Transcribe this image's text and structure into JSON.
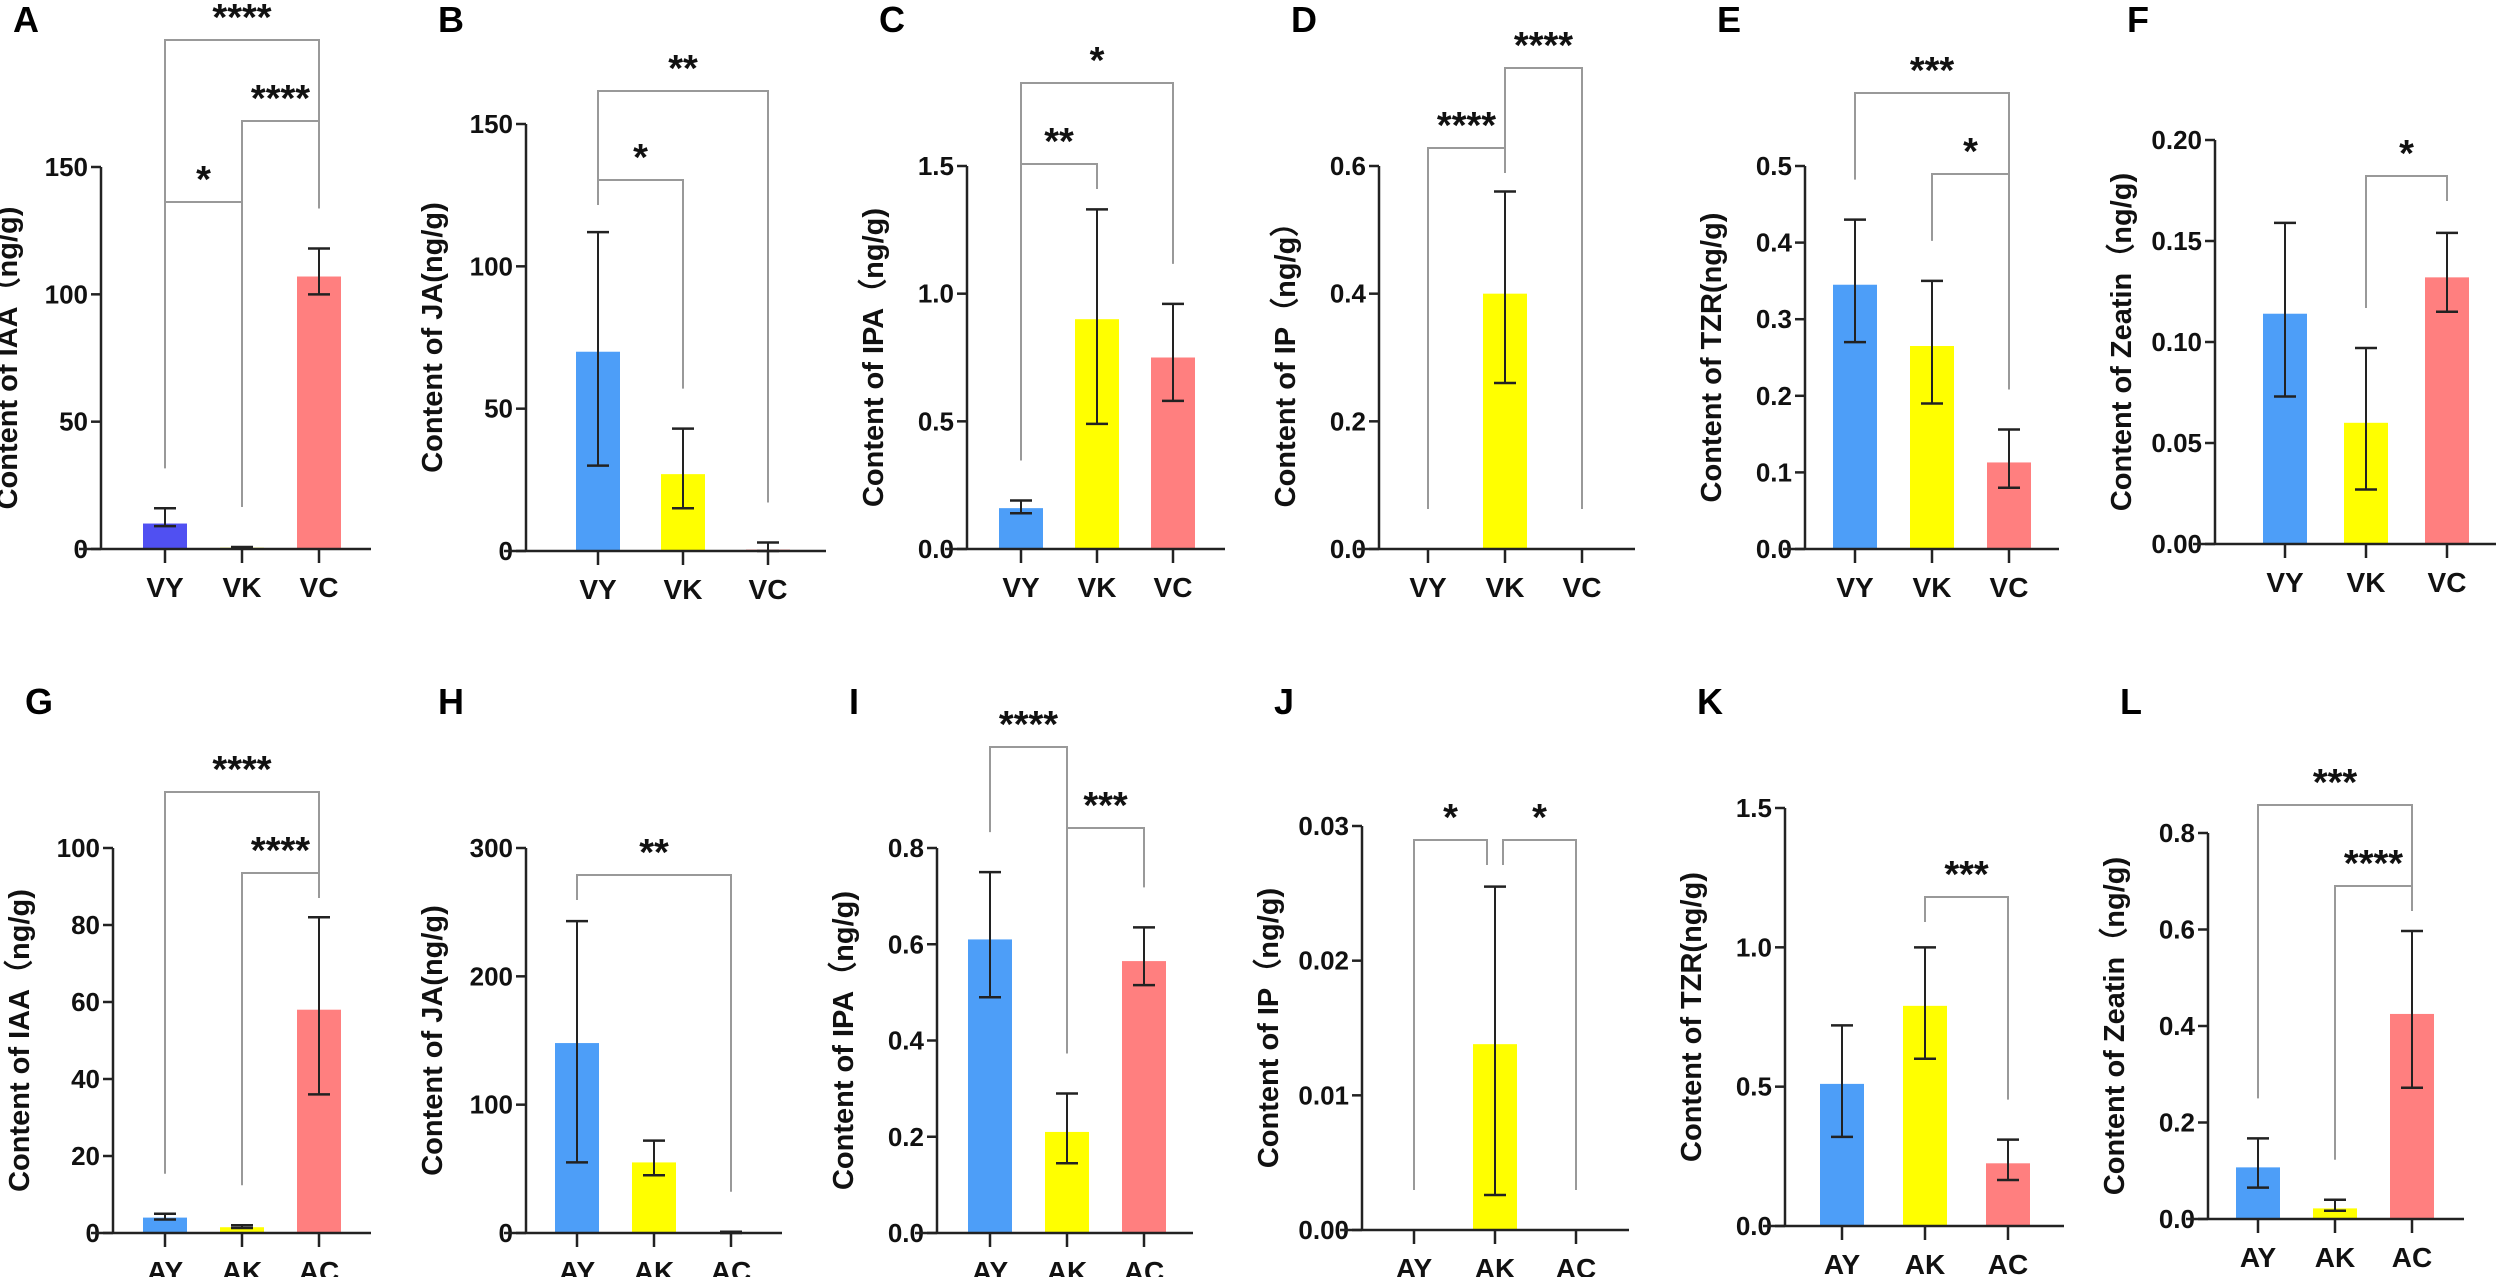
{
  "chart_data": [
    {
      "panel": "A",
      "type": "bar",
      "ylabel": "Content of IAA（ng/g)",
      "ylim": [
        0,
        150
      ],
      "ticks": [
        "0",
        "50",
        "100",
        "150"
      ],
      "tick_values": [
        0,
        50,
        100,
        150
      ],
      "categories": [
        "VY",
        "VK",
        "VC"
      ],
      "values": [
        10,
        0.5,
        107
      ],
      "err_low": [
        9,
        0.3,
        100
      ],
      "err_high": [
        16,
        0.8,
        118
      ],
      "colors": [
        "#5050f2",
        "#ffff00",
        "#ff7f7f"
      ],
      "brackets": [
        {
          "from": 0,
          "to": 1,
          "label": "*"
        },
        {
          "from": 1,
          "to": 2,
          "label": "****"
        },
        {
          "from": 0,
          "to": 2,
          "label": "****"
        }
      ]
    },
    {
      "panel": "B",
      "type": "bar",
      "ylabel": "Content of JA(ng/g)",
      "ylim": [
        0,
        150
      ],
      "ticks": [
        "0",
        "50",
        "100",
        "150"
      ],
      "tick_values": [
        0,
        50,
        100,
        150
      ],
      "categories": [
        "VY",
        "VK",
        "VC"
      ],
      "values": [
        70,
        27,
        0.5
      ],
      "err_low": [
        30,
        15,
        0
      ],
      "err_high": [
        112,
        43,
        3
      ],
      "colors": [
        "#4d9ef8",
        "#ffff00",
        "#ff7f7f"
      ],
      "brackets": [
        {
          "from": 0,
          "to": 1,
          "label": "*"
        },
        {
          "from": 0,
          "to": 2,
          "label": "**"
        }
      ]
    },
    {
      "panel": "C",
      "type": "bar",
      "ylabel": "Content of IPA（ng/g)",
      "ylim": [
        0,
        1.5
      ],
      "ticks": [
        "0.0",
        "0.5",
        "1.0",
        "1.5"
      ],
      "tick_values": [
        0,
        0.5,
        1,
        1.5
      ],
      "categories": [
        "VY",
        "VK",
        "VC"
      ],
      "values": [
        0.16,
        0.9,
        0.75
      ],
      "err_low": [
        0.14,
        0.49,
        0.58
      ],
      "err_high": [
        0.19,
        1.33,
        0.96
      ],
      "colors": [
        "#4d9ef8",
        "#ffff00",
        "#ff7f7f"
      ],
      "brackets": [
        {
          "from": 0,
          "to": 1,
          "label": "**"
        },
        {
          "from": 0,
          "to": 2,
          "label": "*"
        }
      ]
    },
    {
      "panel": "D",
      "type": "bar",
      "ylabel": "Content of IP（ng/g）",
      "ylim": [
        0,
        0.6
      ],
      "ticks": [
        "0.0",
        "0.2",
        "0.4",
        "0.6"
      ],
      "tick_values": [
        0,
        0.2,
        0.4,
        0.6
      ],
      "categories": [
        "VY",
        "VK",
        "VC"
      ],
      "values": [
        0,
        0.4,
        0
      ],
      "err_low": [
        0,
        0.26,
        0
      ],
      "err_high": [
        0,
        0.56,
        0
      ],
      "colors": [
        "#4d9ef8",
        "#ffff00",
        "#ff7f7f"
      ],
      "brackets": [
        {
          "from": 0,
          "to": 1,
          "label": "****"
        },
        {
          "from": 1,
          "to": 2,
          "label": "****"
        }
      ]
    },
    {
      "panel": "E",
      "type": "bar",
      "ylabel": "Content of TZR(ng/g)",
      "ylim": [
        0,
        0.5
      ],
      "ticks": [
        "0.0",
        "0.1",
        "0.2",
        "0.3",
        "0.4",
        "0.5"
      ],
      "tick_values": [
        0,
        0.1,
        0.2,
        0.3,
        0.4,
        0.5
      ],
      "categories": [
        "VY",
        "VK",
        "VC"
      ],
      "values": [
        0.345,
        0.265,
        0.113
      ],
      "err_low": [
        0.27,
        0.19,
        0.08
      ],
      "err_high": [
        0.43,
        0.35,
        0.156
      ],
      "colors": [
        "#4d9ef8",
        "#ffff00",
        "#ff7f7f"
      ],
      "brackets": [
        {
          "from": 1,
          "to": 2,
          "label": "*"
        },
        {
          "from": 0,
          "to": 2,
          "label": "***"
        }
      ]
    },
    {
      "panel": "F",
      "type": "bar",
      "ylabel": "Content of Zeatin（ng/g)",
      "ylim": [
        0,
        0.2
      ],
      "ticks": [
        "0.00",
        "0.05",
        "0.10",
        "0.15",
        "0.20"
      ],
      "tick_values": [
        0,
        0.05,
        0.1,
        0.15,
        0.2
      ],
      "categories": [
        "VY",
        "VK",
        "VC"
      ],
      "values": [
        0.114,
        0.06,
        0.132
      ],
      "err_low": [
        0.073,
        0.027,
        0.115
      ],
      "err_high": [
        0.159,
        0.097,
        0.154
      ],
      "colors": [
        "#4d9ef8",
        "#ffff00",
        "#ff7f7f"
      ],
      "brackets": [
        {
          "from": 1,
          "to": 2,
          "label": "*"
        }
      ]
    },
    {
      "panel": "G",
      "type": "bar",
      "ylabel": "Content of IAA（ng/g)",
      "ylim": [
        0,
        100
      ],
      "ticks": [
        "0",
        "20",
        "40",
        "60",
        "80",
        "100"
      ],
      "tick_values": [
        0,
        20,
        40,
        60,
        80,
        100
      ],
      "categories": [
        "AY",
        "AK",
        "AC"
      ],
      "values": [
        4,
        1.5,
        58
      ],
      "err_low": [
        3.5,
        1.3,
        36
      ],
      "err_high": [
        5,
        2,
        82
      ],
      "colors": [
        "#4d9ef8",
        "#ffff00",
        "#ff7f7f"
      ],
      "brackets": [
        {
          "from": 1,
          "to": 2,
          "label": "****"
        },
        {
          "from": 0,
          "to": 2,
          "label": "****"
        }
      ]
    },
    {
      "panel": "H",
      "type": "bar",
      "ylabel": "Content of JA(ng/g)",
      "ylim": [
        0,
        300
      ],
      "ticks": [
        "0",
        "100",
        "200",
        "300"
      ],
      "tick_values": [
        0,
        100,
        200,
        300
      ],
      "categories": [
        "AY",
        "AK",
        "AC"
      ],
      "values": [
        148,
        55,
        0.5
      ],
      "err_low": [
        55,
        45,
        0
      ],
      "err_high": [
        243,
        72,
        1
      ],
      "colors": [
        "#4d9ef8",
        "#ffff00",
        "#ff7f7f"
      ],
      "brackets": [
        {
          "from": 0,
          "to": 2,
          "label": "**"
        }
      ]
    },
    {
      "panel": "I",
      "type": "bar",
      "ylabel": "Content of IPA（ng/g)",
      "ylim": [
        0,
        0.8
      ],
      "ticks": [
        "0.0",
        "0.2",
        "0.4",
        "0.6",
        "0.8"
      ],
      "tick_values": [
        0,
        0.2,
        0.4,
        0.6,
        0.8
      ],
      "categories": [
        "AY",
        "AK",
        "AC"
      ],
      "values": [
        0.61,
        0.21,
        0.565
      ],
      "err_low": [
        0.49,
        0.145,
        0.515
      ],
      "err_high": [
        0.75,
        0.29,
        0.635
      ],
      "colors": [
        "#4d9ef8",
        "#ffff00",
        "#ff7f7f"
      ],
      "brackets": [
        {
          "from": 0,
          "to": 1,
          "label": "****"
        },
        {
          "from": 1,
          "to": 2,
          "label": "***"
        }
      ]
    },
    {
      "panel": "J",
      "type": "bar",
      "ylabel": "Content of IP（ng/g)",
      "ylim": [
        0,
        0.03
      ],
      "ticks": [
        "0.00",
        "0.01",
        "0.02",
        "0.03"
      ],
      "tick_values": [
        0,
        0.01,
        0.02,
        0.03
      ],
      "categories": [
        "AY",
        "AK",
        "AC"
      ],
      "values": [
        0,
        0.0138,
        0
      ],
      "err_low": [
        0,
        0.0026,
        0
      ],
      "err_high": [
        0,
        0.0255,
        0
      ],
      "colors": [
        "#4d9ef8",
        "#ffff00",
        "#ff7f7f"
      ],
      "brackets": [
        {
          "from": 0,
          "to": 1,
          "label": "*"
        },
        {
          "from": 1,
          "to": 2,
          "label": "*"
        }
      ]
    },
    {
      "panel": "K",
      "type": "bar",
      "ylabel": "Content of TZR(ng/g)",
      "ylim": [
        0,
        1.5
      ],
      "ticks": [
        "0.0",
        "0.5",
        "1.0",
        "1.5"
      ],
      "tick_values": [
        0,
        0.5,
        1,
        1.5
      ],
      "categories": [
        "AY",
        "AK",
        "AC"
      ],
      "values": [
        0.51,
        0.79,
        0.225
      ],
      "err_low": [
        0.32,
        0.6,
        0.165
      ],
      "err_high": [
        0.72,
        1.0,
        0.31
      ],
      "colors": [
        "#4d9ef8",
        "#ffff00",
        "#ff7f7f"
      ],
      "brackets": [
        {
          "from": 1,
          "to": 2,
          "label": "***"
        }
      ]
    },
    {
      "panel": "L",
      "type": "bar",
      "ylabel": "Content of Zeatin（ng/g)",
      "ylim": [
        0,
        0.8
      ],
      "ticks": [
        "0.0",
        "0.2",
        "0.4",
        "0.6",
        "0.8"
      ],
      "tick_values": [
        0,
        0.2,
        0.4,
        0.6,
        0.8
      ],
      "categories": [
        "AY",
        "AK",
        "AC"
      ],
      "values": [
        0.107,
        0.022,
        0.425
      ],
      "err_low": [
        0.065,
        0.017,
        0.272
      ],
      "err_high": [
        0.167,
        0.04,
        0.597
      ],
      "colors": [
        "#4d9ef8",
        "#ffff00",
        "#ff7f7f"
      ],
      "brackets": [
        {
          "from": 1,
          "to": 2,
          "label": "****"
        },
        {
          "from": 0,
          "to": 2,
          "label": "***"
        }
      ]
    }
  ]
}
